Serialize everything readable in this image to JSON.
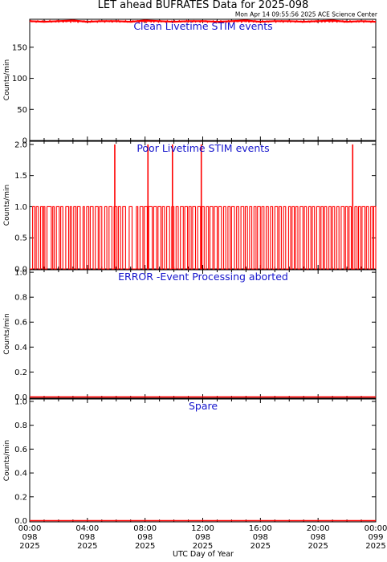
{
  "title": "LET ahead BUFRATES Data for 2025-098",
  "timestamp": "Mon Apr 14 09:55:56 2025 ACE Science Center",
  "colors": {
    "data": "#ff0000",
    "panel_title": "#1414cc",
    "axes": "#000000"
  },
  "xaxis": {
    "label": "UTC Day of Year",
    "range": [
      0,
      24
    ],
    "ticks": [
      {
        "value": 0,
        "l1": "00:00",
        "l2": "098",
        "l3": "2025"
      },
      {
        "value": 4,
        "l1": "04:00",
        "l2": "098",
        "l3": "2025"
      },
      {
        "value": 8,
        "l1": "08:00",
        "l2": "098",
        "l3": "2025"
      },
      {
        "value": 12,
        "l1": "12:00",
        "l2": "098",
        "l3": "2025"
      },
      {
        "value": 16,
        "l1": "16:00",
        "l2": "098",
        "l3": "2025"
      },
      {
        "value": 20,
        "l1": "20:00",
        "l2": "098",
        "l3": "2025"
      },
      {
        "value": 24,
        "l1": "00:00",
        "l2": "099",
        "l3": "2025"
      }
    ]
  },
  "chart_data": [
    {
      "type": "line",
      "title": "Clean Livetime STIM events",
      "ylabel": "Counts/min",
      "ylim": [
        0,
        195
      ],
      "yticks": [
        "0",
        "50",
        "100",
        "150"
      ],
      "ytick_values": [
        0,
        50,
        100,
        150
      ],
      "series": [
        {
          "x": [
            0,
            1,
            2,
            3,
            4,
            5,
            6,
            7,
            8,
            9,
            10,
            11,
            12,
            13,
            14,
            15,
            16,
            17,
            18,
            19,
            20,
            21,
            22,
            23,
            24
          ],
          "values": [
            192,
            191,
            192,
            193,
            191,
            192,
            192,
            191,
            193,
            192,
            191,
            192,
            192,
            191,
            192,
            193,
            191,
            192,
            192,
            191,
            192,
            193,
            191,
            192,
            191
          ]
        }
      ]
    },
    {
      "type": "line",
      "title": "Poor Livetime STIM events",
      "ylabel": "Counts/min",
      "ylim": [
        0,
        2.05
      ],
      "yticks": [
        "0.0",
        "0.5",
        "1.0",
        "1.5",
        "2.0"
      ],
      "ytick_values": [
        0,
        0.5,
        1.0,
        1.5,
        2.0
      ],
      "spikes_x": [
        5.9,
        8.2,
        9.9,
        11.9,
        22.4
      ],
      "pulses": [
        [
          0.2,
          0.35
        ],
        [
          0.45,
          0.6
        ],
        [
          0.75,
          0.9
        ],
        [
          0.95,
          1.05
        ],
        [
          1.2,
          1.5
        ],
        [
          1.6,
          1.7
        ],
        [
          1.85,
          2.05
        ],
        [
          2.15,
          2.3
        ],
        [
          2.5,
          2.7
        ],
        [
          2.8,
          2.9
        ],
        [
          3.05,
          3.2
        ],
        [
          3.3,
          3.5
        ],
        [
          3.7,
          3.8
        ],
        [
          3.95,
          4.1
        ],
        [
          4.2,
          4.4
        ],
        [
          4.55,
          4.75
        ],
        [
          4.85,
          5.0
        ],
        [
          5.2,
          5.35
        ],
        [
          5.5,
          5.7
        ],
        [
          5.85,
          6.05
        ],
        [
          6.15,
          6.3
        ],
        [
          6.45,
          6.65
        ],
        [
          6.9,
          7.1
        ],
        [
          7.4,
          7.5
        ],
        [
          7.65,
          7.85
        ],
        [
          7.95,
          8.15
        ],
        [
          8.25,
          8.5
        ],
        [
          8.6,
          8.8
        ],
        [
          8.9,
          9.1
        ],
        [
          9.2,
          9.35
        ],
        [
          9.5,
          9.7
        ],
        [
          9.85,
          10.0
        ],
        [
          10.15,
          10.3
        ],
        [
          10.45,
          10.65
        ],
        [
          10.75,
          10.95
        ],
        [
          11.05,
          11.2
        ],
        [
          11.3,
          11.5
        ],
        [
          11.65,
          11.85
        ],
        [
          11.95,
          12.1
        ],
        [
          12.25,
          12.4
        ],
        [
          12.5,
          12.7
        ],
        [
          12.8,
          13.0
        ],
        [
          13.1,
          13.3
        ],
        [
          13.45,
          13.6
        ],
        [
          13.75,
          13.9
        ],
        [
          14.0,
          14.2
        ],
        [
          14.35,
          14.5
        ],
        [
          14.65,
          14.85
        ],
        [
          14.95,
          15.1
        ],
        [
          15.25,
          15.4
        ],
        [
          15.55,
          15.7
        ],
        [
          15.8,
          16.0
        ],
        [
          16.1,
          16.25
        ],
        [
          16.4,
          16.55
        ],
        [
          16.7,
          16.85
        ],
        [
          17.0,
          17.2
        ],
        [
          17.3,
          17.45
        ],
        [
          17.6,
          17.75
        ],
        [
          17.95,
          18.1
        ],
        [
          18.2,
          18.35
        ],
        [
          18.45,
          18.6
        ],
        [
          18.75,
          18.95
        ],
        [
          19.05,
          19.2
        ],
        [
          19.35,
          19.5
        ],
        [
          19.6,
          19.75
        ],
        [
          19.9,
          20.1
        ],
        [
          20.2,
          20.35
        ],
        [
          20.45,
          20.6
        ],
        [
          20.75,
          20.9
        ],
        [
          21.0,
          21.15
        ],
        [
          21.3,
          21.45
        ],
        [
          21.6,
          21.8
        ],
        [
          21.9,
          22.05
        ],
        [
          22.15,
          22.3
        ],
        [
          22.55,
          22.7
        ],
        [
          22.8,
          22.95
        ],
        [
          23.05,
          23.25
        ],
        [
          23.35,
          23.5
        ],
        [
          23.65,
          23.8
        ],
        [
          23.85,
          24.0
        ]
      ]
    },
    {
      "type": "line",
      "title": "ERROR -Event Processing aborted",
      "ylabel": "Counts/min",
      "ylim": [
        -0.01,
        1.02
      ],
      "yticks": [
        "0.0",
        "0.2",
        "0.4",
        "0.6",
        "0.8",
        "1.0"
      ],
      "ytick_values": [
        0,
        0.2,
        0.4,
        0.6,
        0.8,
        1.0
      ],
      "series": [
        {
          "x": [
            0,
            24
          ],
          "values": [
            0,
            0
          ]
        }
      ]
    },
    {
      "type": "line",
      "title": "Spare",
      "ylabel": "Counts/min",
      "ylim": [
        -0.01,
        1.02
      ],
      "yticks": [
        "0.0",
        "0.2",
        "0.4",
        "0.6",
        "0.8",
        "1.0"
      ],
      "ytick_values": [
        0,
        0.2,
        0.4,
        0.6,
        0.8,
        1.0
      ],
      "series": [
        {
          "x": [
            0,
            24
          ],
          "values": [
            0,
            0
          ]
        }
      ]
    }
  ]
}
